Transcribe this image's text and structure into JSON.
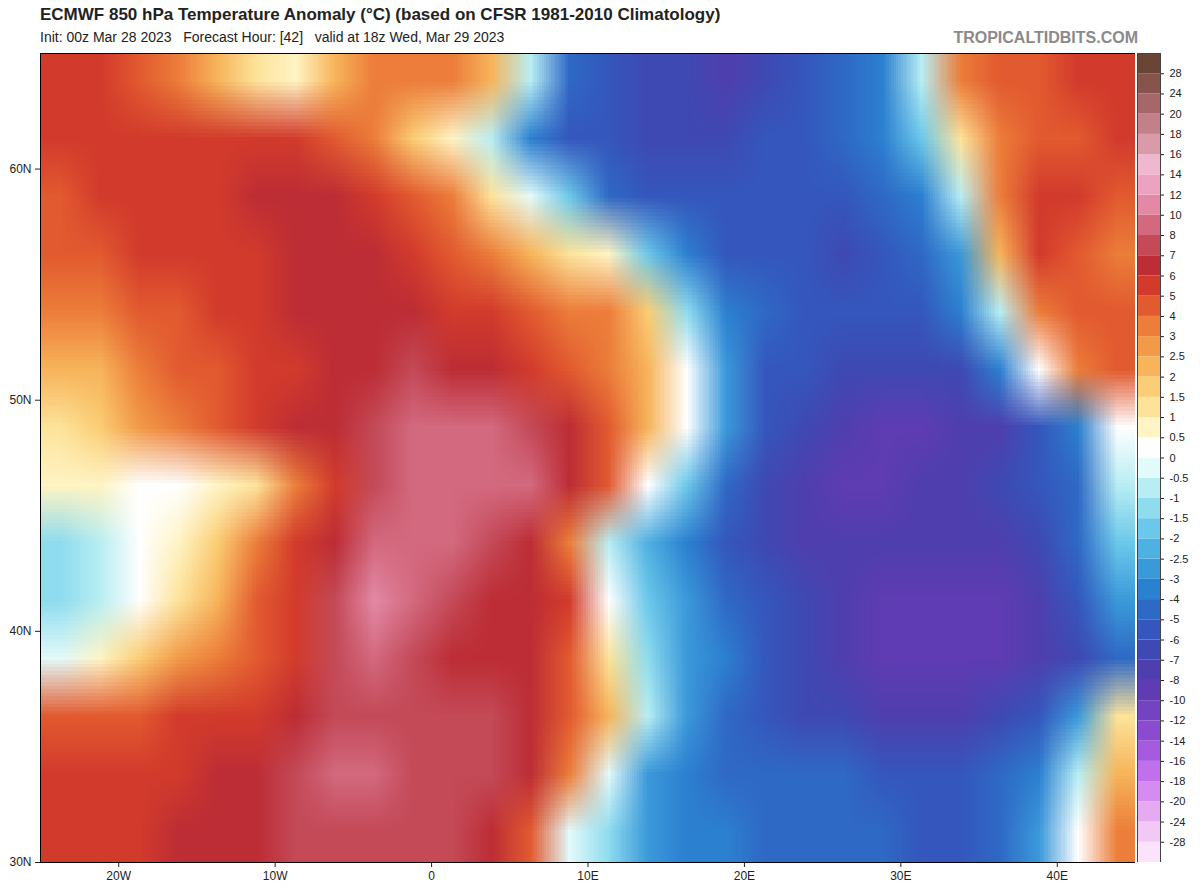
{
  "chart_data": {
    "type": "heatmap",
    "title": "ECMWF 850 hPa Temperature Anomaly (°C) (based on CFSR 1981-2010 Climatology)",
    "subtitle": "Init: 00z Mar 28 2023   Forecast Hour: [42]   valid at 18z Wed, Mar 29 2023",
    "source": "TROPICALTIDBITS.COM",
    "xlim": [
      -25,
      45
    ],
    "ylim": [
      30,
      65
    ],
    "xticks": [
      {
        "value": -20,
        "label": "20W"
      },
      {
        "value": -10,
        "label": "10W"
      },
      0,
      {
        "value": 10,
        "label": "10E"
      },
      {
        "value": 20,
        "label": "20E"
      },
      {
        "value": 30,
        "label": "30E"
      },
      {
        "value": 40,
        "label": "40E"
      }
    ],
    "yticks": [
      {
        "value": 30,
        "label": "30N"
      },
      {
        "value": 40,
        "label": "40N"
      },
      {
        "value": 50,
        "label": "50N"
      },
      {
        "value": 60,
        "label": "60N"
      }
    ],
    "x": [
      -23.75,
      -21.25,
      -18.75,
      -16.25,
      -13.75,
      -11.25,
      -8.75,
      -6.25,
      -3.75,
      -1.25,
      1.25,
      3.75,
      6.25,
      8.75,
      11.25,
      13.75,
      16.25,
      18.75,
      21.25,
      23.75,
      26.25,
      28.75,
      31.25,
      33.75,
      36.25,
      38.75,
      41.25,
      43.75
    ],
    "y": [
      63.75,
      61.25,
      58.75,
      56.25,
      53.75,
      51.25,
      48.75,
      46.25,
      43.75,
      41.25,
      38.75,
      36.25,
      33.75,
      31.25
    ],
    "values": [
      [
        5,
        5,
        4,
        3,
        2,
        1,
        0.5,
        2,
        3,
        3,
        3,
        2,
        -1,
        -5,
        -6,
        -7,
        -7,
        -8,
        -7,
        -6,
        -5,
        -4,
        -1,
        3,
        4,
        4,
        5,
        5
      ],
      [
        5,
        5,
        5,
        5,
        5,
        5,
        5,
        4,
        3,
        1.5,
        0.5,
        -1,
        -4,
        -6,
        -6,
        -7,
        -7,
        -7,
        -6,
        -6,
        -5,
        -4,
        -2,
        1,
        3,
        4,
        4,
        5
      ],
      [
        4,
        5,
        5,
        5,
        5,
        6,
        6,
        6,
        5,
        4,
        3,
        1,
        -0.5,
        -2,
        -5,
        -6,
        -6,
        -6,
        -6,
        -6,
        -6,
        -5,
        -4,
        -1,
        3,
        5,
        5,
        4
      ],
      [
        4,
        4,
        5,
        5,
        5,
        5,
        6,
        6,
        6,
        5,
        4,
        3,
        2,
        1,
        0.5,
        -2,
        -4,
        -6,
        -6,
        -6,
        -7,
        -6,
        -5,
        -3,
        2,
        5,
        4,
        3
      ],
      [
        3,
        3,
        4,
        4,
        5,
        5,
        6,
        6,
        6,
        6,
        5,
        5,
        4,
        3,
        3,
        1.5,
        -1.5,
        -4,
        -5,
        -6,
        -6,
        -6,
        -6,
        -4,
        -1,
        3,
        4,
        4
      ],
      [
        2,
        2,
        3,
        4,
        4,
        5,
        5,
        6,
        6,
        7,
        6,
        6,
        5,
        4,
        3,
        2,
        0,
        -3,
        -6,
        -6,
        -7,
        -7,
        -7,
        -7,
        -4,
        0,
        3,
        4
      ],
      [
        1,
        1.5,
        2.5,
        3,
        4,
        5,
        6,
        6,
        7,
        8,
        8,
        8,
        7,
        6,
        4,
        2,
        0,
        -3,
        -6,
        -7,
        -8,
        -10,
        -10,
        -8,
        -8,
        -6,
        -4,
        0
      ],
      [
        0.5,
        0.5,
        0,
        0,
        0.5,
        1,
        3,
        5,
        7,
        8,
        8,
        8,
        8,
        6,
        4,
        0,
        -2,
        -5,
        -7,
        -8,
        -10,
        -10,
        -8,
        -8,
        -7,
        -6,
        -5,
        -1
      ],
      [
        -1.5,
        -1,
        0,
        0.5,
        1.5,
        3,
        5,
        6,
        8,
        8,
        8,
        7,
        6,
        3,
        -1,
        -2.5,
        -4,
        -6,
        -7,
        -8,
        -8,
        -8,
        -8,
        -8,
        -8,
        -7,
        -5,
        -2
      ],
      [
        -1.5,
        -1,
        0,
        1,
        2,
        4,
        5,
        7,
        10,
        8,
        7,
        6,
        6,
        5,
        0,
        -2,
        -3,
        -5,
        -6,
        -7,
        -8,
        -10,
        -10,
        -10,
        -10,
        -8,
        -6,
        -3
      ],
      [
        -0.5,
        0.5,
        1.5,
        2.5,
        3,
        4,
        5,
        7,
        8,
        7,
        6,
        6,
        6,
        4,
        1,
        -1.5,
        -3,
        -4,
        -6,
        -7,
        -8,
        -10,
        -10,
        -10,
        -10,
        -8,
        -7,
        -5
      ],
      [
        4,
        4,
        4,
        5,
        5,
        5,
        6,
        7,
        7,
        7,
        7,
        7,
        6,
        4,
        2,
        -1,
        -3,
        -5,
        -6,
        -7,
        -7,
        -8,
        -8,
        -8,
        -7,
        -6,
        -3,
        1
      ],
      [
        5,
        5,
        5,
        5,
        6,
        6,
        7,
        8,
        8,
        7,
        7,
        7,
        6,
        3,
        -0.5,
        -3,
        -4,
        -5,
        -5,
        -5,
        -5,
        -6,
        -6,
        -6,
        -5,
        -4,
        -1,
        2
      ],
      [
        5,
        5,
        5,
        6,
        6,
        6,
        7,
        7,
        7,
        7,
        7,
        6,
        4,
        -0.5,
        -1.5,
        -3,
        -4,
        -4,
        -5,
        -5,
        -5,
        -5,
        -6,
        -6,
        -5,
        -3,
        0,
        3
      ]
    ],
    "colorbar": {
      "ticks": [
        -28,
        -24,
        -20,
        -18,
        -16,
        -14,
        -12,
        -10,
        -8,
        -7,
        -6,
        -5,
        -4,
        -3,
        -2.5,
        -2,
        -1.5,
        -1,
        -0.5,
        0,
        0.5,
        1,
        1.5,
        2,
        2.5,
        3,
        4,
        5,
        6,
        7,
        8,
        10,
        12,
        14,
        16,
        18,
        20,
        24,
        28
      ],
      "colors": [
        "#fbe3fb",
        "#f2c8f6",
        "#e6aaf3",
        "#d58cf0",
        "#c070ea",
        "#a65ae0",
        "#8a4bd0",
        "#7443c2",
        "#5f3cb3",
        "#4f3fae",
        "#3f49b3",
        "#3557bd",
        "#2f69c6",
        "#2c80d0",
        "#3b99da",
        "#4fb0e2",
        "#6cc8ea",
        "#8fdcef",
        "#b8eef3",
        "#e3fafa",
        "#ffffff",
        "#fff4c4",
        "#fde39a",
        "#fbcd74",
        "#f7b45a",
        "#f29a48",
        "#ec7d3a",
        "#e25a30",
        "#d23b2c",
        "#bd2d35",
        "#c44a58",
        "#d3697f",
        "#e389a6",
        "#eca3bf",
        "#f0b8cf",
        "#d99aaa",
        "#c1808a",
        "#a5676a",
        "#87544b",
        "#6a4536"
      ]
    }
  }
}
